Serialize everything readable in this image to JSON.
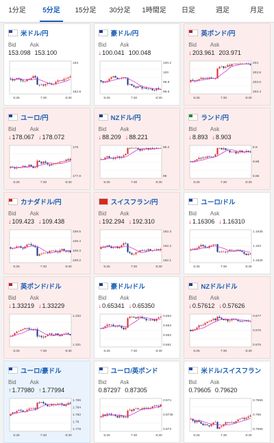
{
  "tabs": [
    {
      "label": "1分足",
      "active": false
    },
    {
      "label": "5分足",
      "active": true
    },
    {
      "label": "15分足",
      "active": false
    },
    {
      "label": "30分足",
      "active": false
    },
    {
      "label": "1時間足",
      "active": false
    },
    {
      "label": "日足",
      "active": false
    },
    {
      "label": "週足",
      "active": false
    },
    {
      "label": "月足",
      "active": false
    }
  ],
  "common": {
    "bid": "Bid",
    "ask": "Ask",
    "xticks": [
      "5:25",
      "7:30",
      "8:30"
    ]
  },
  "cards": [
    {
      "pair": "米ドル/円",
      "flag": "us",
      "bg": "white",
      "bid": "153.098",
      "ask": "153.100",
      "bid_dir": "",
      "ask_dir": "",
      "yticks": [
        "153",
        "152.8"
      ],
      "seed": 1
    },
    {
      "pair": "豪ドル/円",
      "flag": "au",
      "bg": "white",
      "bid": "100.041",
      "ask": "100.048",
      "bid_dir": "down",
      "ask_dir": "",
      "yticks": [
        "100.2",
        "100",
        "99.8",
        "99.6"
      ],
      "seed": 2
    },
    {
      "pair": "英ポンド/円",
      "flag": "gb",
      "bg": "pink",
      "bid": "203.961",
      "ask": "203.971",
      "bid_dir": "down",
      "ask_dir": "",
      "yticks": [
        "204",
        "203.8",
        "203.6",
        "203.4"
      ],
      "seed": 3
    },
    {
      "pair": "ユーロ/円",
      "flag": "eu",
      "bg": "pink",
      "bid": "178.067",
      "ask": "178.072",
      "bid_dir": "down",
      "ask_dir": "down",
      "yticks": [
        "178",
        "177.8"
      ],
      "seed": 4
    },
    {
      "pair": "NZドル/円",
      "flag": "nz",
      "bg": "pink",
      "bid": "88.209",
      "ask": "88.221",
      "bid_dir": "down",
      "ask_dir": "down",
      "yticks": [
        "88.2",
        "88"
      ],
      "seed": 5
    },
    {
      "pair": "ランド/円",
      "flag": "za",
      "bg": "pink",
      "bid": "8.893",
      "ask": "8.903",
      "bid_dir": "down",
      "ask_dir": "down",
      "yticks": [
        "8.9",
        "8.88",
        "8.86"
      ],
      "seed": 6
    },
    {
      "pair": "カナダドル/円",
      "flag": "ca",
      "bg": "pink",
      "bid": "109.423",
      "ask": "109.438",
      "bid_dir": "down",
      "ask_dir": "down",
      "yticks": [
        "109.5",
        "109.4",
        "109.3",
        "109.2"
      ],
      "seed": 7
    },
    {
      "pair": "スイスフラン/円",
      "flag": "ch",
      "bg": "pink",
      "bid": "192.294",
      "ask": "192.310",
      "bid_dir": "down",
      "ask_dir": "down",
      "yticks": [
        "192.3",
        "192.2",
        "192.1"
      ],
      "seed": 8
    },
    {
      "pair": "ユーロ/ドル",
      "flag": "eu",
      "bg": "white",
      "bid": "1.16306",
      "ask": "1.16310",
      "bid_dir": "down",
      "ask_dir": "down",
      "yticks": [
        "1.1635",
        "1.163",
        "1.1625"
      ],
      "seed": 9
    },
    {
      "pair": "英ポンド/ドル",
      "flag": "gb",
      "bg": "pink",
      "bid": "1.33219",
      "ask": "1.33229",
      "bid_dir": "down",
      "ask_dir": "down",
      "yticks": [
        "1.332",
        "1.331"
      ],
      "seed": 10
    },
    {
      "pair": "豪ドル/ドル",
      "flag": "au",
      "bg": "white",
      "bid": "0.65341",
      "ask": "0.65350",
      "bid_dir": "down",
      "ask_dir": "down",
      "yticks": [
        "0.654",
        "0.653",
        "0.652",
        "0.651"
      ],
      "seed": 11
    },
    {
      "pair": "NZドル/ドル",
      "flag": "nz",
      "bg": "pink",
      "bid": "0.57612",
      "ask": "0.57626",
      "bid_dir": "down",
      "ask_dir": "down",
      "yticks": [
        "0.577",
        "0.576",
        "0.575"
      ],
      "seed": 12
    },
    {
      "pair": "ユーロ/豪ドル",
      "flag": "eu",
      "bg": "blue",
      "bid": "1.77980",
      "ask": "1.77994",
      "bid_dir": "up",
      "ask_dir": "up",
      "yticks": [
        "1.786",
        "1.784",
        "1.782",
        "1.78",
        "1.778"
      ],
      "seed": 13
    },
    {
      "pair": "ユーロ/英ポンド",
      "flag": "eu",
      "bg": "white",
      "bid": "0.87297",
      "ask": "0.87305",
      "bid_dir": "",
      "ask_dir": "",
      "yticks": [
        "0.874",
        "0.8735",
        "0.873"
      ],
      "seed": 14
    },
    {
      "pair": "米ドル/スイスフラン",
      "flag": "us",
      "bg": "white",
      "bid": "0.79605",
      "ask": "0.79620",
      "bid_dir": "",
      "ask_dir": "",
      "yticks": [
        "0.7965",
        "0.796",
        "0.7955"
      ],
      "seed": 15
    }
  ]
}
